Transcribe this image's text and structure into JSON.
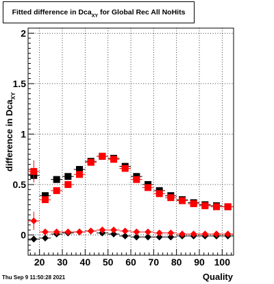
{
  "title": {
    "main": "Fitted difference in Dca",
    "subscript": "XY",
    "suffix": " for Global Rec All NoHits"
  },
  "timestamp": "Thu Sep  9 11:50:28 2021",
  "chart_data": {
    "type": "scatter",
    "xlabel": "Quality",
    "ylabel": "difference in Dca",
    "ylabel_subscript": "XY",
    "xlim": [
      15,
      105
    ],
    "ylim": [
      -0.2,
      2.05
    ],
    "xticks": [
      20,
      30,
      40,
      50,
      60,
      70,
      80,
      90,
      100
    ],
    "yticks": [
      0,
      0.5,
      1,
      1.5,
      2
    ],
    "ytick_labels": [
      "0",
      "0.5",
      "1",
      "1.5",
      "2"
    ],
    "grid": true,
    "x": [
      17.5,
      22.5,
      27.5,
      32.5,
      37.5,
      42.5,
      47.5,
      52.5,
      57.5,
      62.5,
      67.5,
      72.5,
      77.5,
      82.5,
      87.5,
      92.5,
      97.5,
      102.5
    ],
    "series": [
      {
        "marker": "square",
        "color": "#000000",
        "values": [
          0.59,
          0.39,
          0.55,
          0.58,
          0.65,
          0.73,
          0.78,
          0.76,
          0.68,
          0.58,
          0.5,
          0.44,
          0.39,
          0.35,
          0.32,
          0.3,
          0.29,
          0.28
        ],
        "errors": [
          0.04,
          0.03,
          0.02,
          0.02,
          0.02,
          0.02,
          0.02,
          0.02,
          0.02,
          0.02,
          0.02,
          0.02,
          0.02,
          0.02,
          0.02,
          0.02,
          0.02,
          0.02
        ]
      },
      {
        "marker": "square",
        "color": "#ff0000",
        "values": [
          0.63,
          0.35,
          0.44,
          0.5,
          0.6,
          0.72,
          0.78,
          0.75,
          0.66,
          0.55,
          0.47,
          0.41,
          0.37,
          0.34,
          0.31,
          0.29,
          0.28,
          0.28
        ],
        "errors": [
          0.11,
          0.03,
          0.02,
          0.02,
          0.02,
          0.02,
          0.02,
          0.02,
          0.02,
          0.02,
          0.02,
          0.02,
          0.02,
          0.02,
          0.02,
          0.02,
          0.02,
          0.02
        ]
      },
      {
        "marker": "diamond",
        "color": "#000000",
        "values": [
          -0.04,
          -0.03,
          0.01,
          0.02,
          0.03,
          0.04,
          0.02,
          0.01,
          -0.01,
          -0.02,
          -0.02,
          -0.02,
          -0.02,
          -0.01,
          -0.01,
          -0.01,
          -0.01,
          -0.01
        ],
        "errors": [
          0.03,
          0.02,
          0.01,
          0.01,
          0.01,
          0.01,
          0.01,
          0.01,
          0.01,
          0.01,
          0.01,
          0.01,
          0.01,
          0.01,
          0.01,
          0.01,
          0.01,
          0.01
        ]
      },
      {
        "marker": "diamond",
        "color": "#ff0000",
        "values": [
          0.14,
          0.03,
          0.03,
          0.03,
          0.03,
          0.04,
          0.05,
          0.05,
          0.04,
          0.03,
          0.03,
          0.02,
          0.02,
          0.01,
          0.01,
          0.01,
          0.01,
          0.01
        ],
        "errors": [
          0.09,
          0.01,
          0.01,
          0.01,
          0.01,
          0.01,
          0.01,
          0.01,
          0.01,
          0.01,
          0.01,
          0.01,
          0.01,
          0.01,
          0.01,
          0.01,
          0.01,
          0.01
        ]
      }
    ]
  }
}
